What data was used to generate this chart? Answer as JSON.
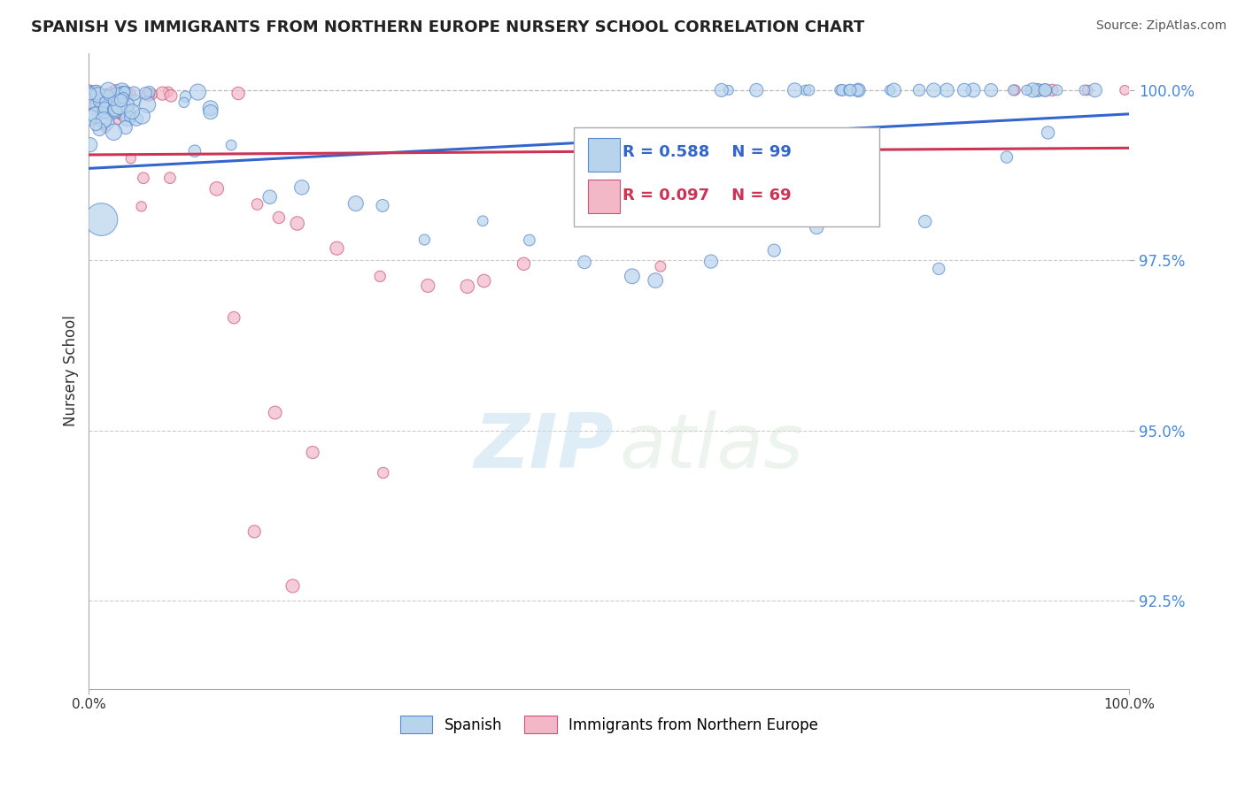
{
  "title": "SPANISH VS IMMIGRANTS FROM NORTHERN EUROPE NURSERY SCHOOL CORRELATION CHART",
  "source": "Source: ZipAtlas.com",
  "ylabel": "Nursery School",
  "watermark_zip": "ZIP",
  "watermark_atlas": "atlas",
  "legend_spanish": "Spanish",
  "legend_immigrants": "Immigrants from Northern Europe",
  "R_spanish": 0.588,
  "N_spanish": 99,
  "R_immigrants": 0.097,
  "N_immigrants": 69,
  "xlim": [
    0.0,
    100.0
  ],
  "ylim": [
    91.2,
    100.55
  ],
  "yticks": [
    92.5,
    95.0,
    97.5,
    100.0
  ],
  "ytick_labels": [
    "92.5%",
    "95.0%",
    "97.5%",
    "100.0%"
  ],
  "xtick_labels": [
    "0.0%",
    "100.0%"
  ],
  "color_spanish": "#b8d4ed",
  "color_immigrants": "#f2b8c8",
  "edge_color_spanish": "#5588cc",
  "edge_color_immigrants": "#cc5577",
  "line_color_spanish": "#3366cc",
  "line_color_immigrants": "#cc3355",
  "background": "#ffffff",
  "spanish_slope": 0.008,
  "spanish_intercept": 98.85,
  "immigrants_slope": 0.001,
  "immigrants_intercept": 99.05
}
